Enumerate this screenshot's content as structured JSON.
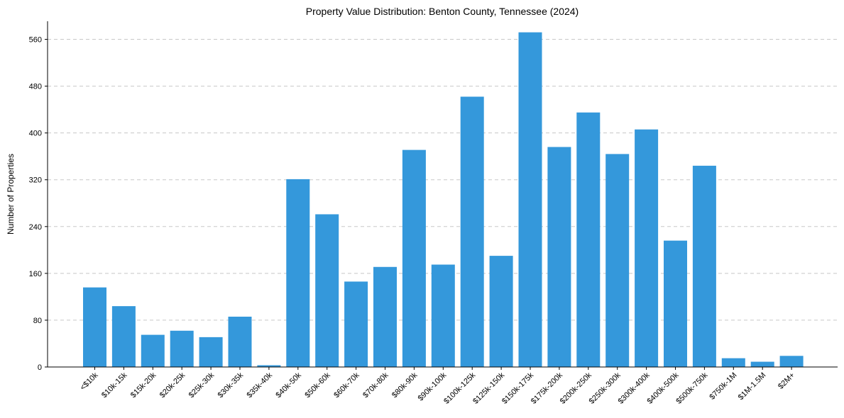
{
  "chart_data": {
    "type": "bar",
    "title": "Property Value Distribution: Benton County, Tennessee (2024)",
    "xlabel": "",
    "ylabel": "Number of Properties",
    "categories": [
      "<$10k",
      "$10k-15k",
      "$15k-20k",
      "$20k-25k",
      "$25k-30k",
      "$30k-35k",
      "$35k-40k",
      "$40k-50k",
      "$50k-60k",
      "$60k-70k",
      "$70k-80k",
      "$80k-90k",
      "$90k-100k",
      "$100k-125k",
      "$125k-150k",
      "$150k-175k",
      "$175k-200k",
      "$200k-250k",
      "$250k-300k",
      "$300k-400k",
      "$400k-500k",
      "$500k-750k",
      "$750k-1M",
      "$1M-1.5M",
      "$2M+"
    ],
    "values": [
      136,
      104,
      55,
      62,
      51,
      86,
      3,
      321,
      261,
      146,
      171,
      371,
      175,
      462,
      190,
      572,
      376,
      435,
      364,
      406,
      216,
      344,
      15,
      9,
      19
    ],
    "yticks": [
      0,
      80,
      160,
      240,
      320,
      400,
      480,
      560
    ],
    "ylim": [
      0,
      600
    ],
    "grid": true,
    "color": "#3498db"
  }
}
